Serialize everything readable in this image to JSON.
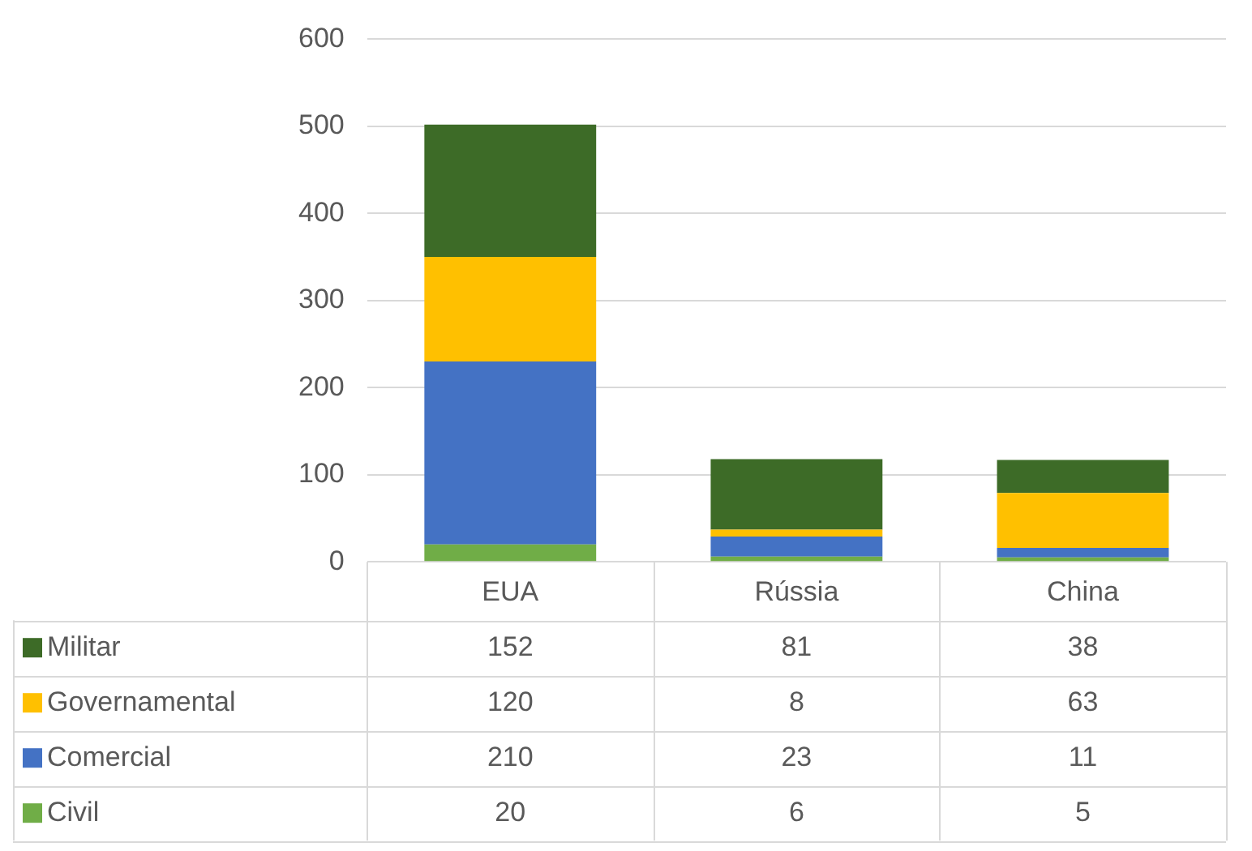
{
  "chart_data": {
    "type": "bar",
    "stacked": true,
    "categories": [
      "EUA",
      "Rússia",
      "China"
    ],
    "series": [
      {
        "name": "Civil",
        "color": "#70ad47",
        "values": [
          20,
          6,
          5
        ]
      },
      {
        "name": "Comercial",
        "color": "#4472c4",
        "values": [
          210,
          23,
          11
        ]
      },
      {
        "name": "Governamental",
        "color": "#ffc000",
        "values": [
          120,
          8,
          63
        ]
      },
      {
        "name": "Militar",
        "color": "#3d6b27",
        "values": [
          152,
          81,
          38
        ]
      }
    ],
    "ylim": [
      0,
      600
    ],
    "yticks": [
      0,
      100,
      200,
      300,
      400,
      500,
      600
    ],
    "grid": "y",
    "legend": "bottom",
    "data_labels": true
  }
}
